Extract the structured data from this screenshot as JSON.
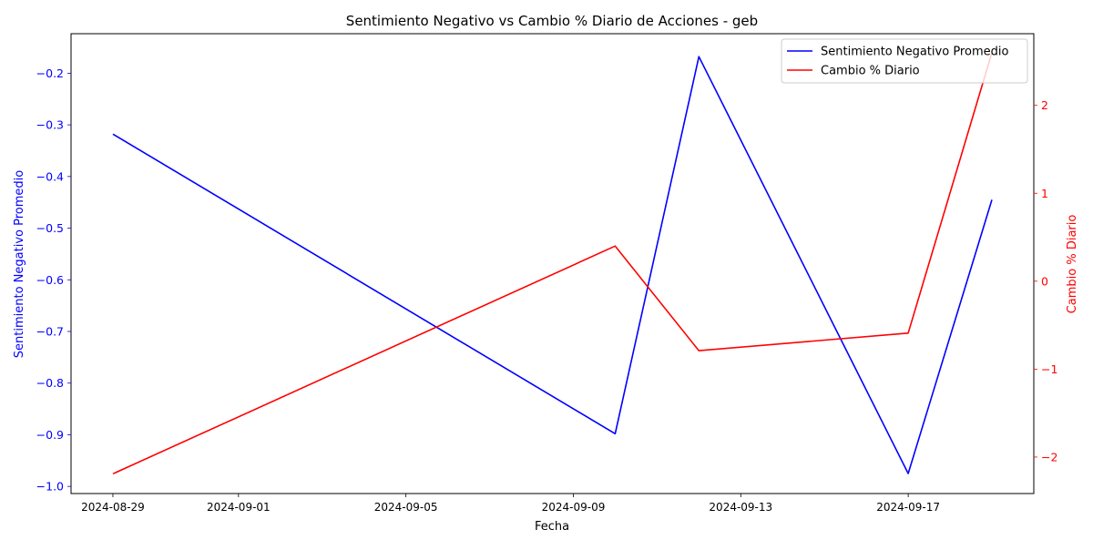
{
  "chart_data": {
    "type": "line",
    "title": "Sentimiento Negativo vs Cambio % Diario de Acciones - geb",
    "xlabel": "Fecha",
    "ylabel_left": "Sentimiento Negativo Promedio",
    "ylabel_right": "Cambio % Diario",
    "x_ticks": [
      "2024-08-29",
      "2024-09-01",
      "2024-09-05",
      "2024-09-09",
      "2024-09-13",
      "2024-09-17"
    ],
    "y_left_ticks": [
      "-1.0",
      "-0.9",
      "-0.8",
      "-0.7",
      "-0.6",
      "-0.5",
      "-0.4",
      "-0.3",
      "-0.2"
    ],
    "y_right_ticks": [
      "-2",
      "-1",
      "0",
      "1",
      "2"
    ],
    "y_left_lim": [
      -1.0138,
      -0.1235
    ],
    "y_right_lim": [
      -2.415,
      2.815
    ],
    "x_lim": [
      "2024-08-28T00:00",
      "2024-09-20T00:00"
    ],
    "legend_position": "upper right",
    "colors": {
      "left_axis": "#0000ff",
      "right_axis": "#ff0000",
      "axes": "#000000"
    },
    "series": [
      {
        "name": "Sentimiento Negativo Promedio",
        "axis": "left",
        "color": "#0000ff",
        "x": [
          "2024-08-29",
          "2024-09-10",
          "2024-09-12",
          "2024-09-17",
          "2024-09-19"
        ],
        "values": [
          -0.318,
          -0.898,
          -0.168,
          -0.975,
          -0.445
        ]
      },
      {
        "name": "Cambio % Diario",
        "axis": "right",
        "color": "#ff0000",
        "x": [
          "2024-08-29",
          "2024-09-10",
          "2024-09-12",
          "2024-09-17",
          "2024-09-19"
        ],
        "values": [
          -2.19,
          0.4,
          -0.79,
          -0.59,
          2.6
        ]
      }
    ]
  }
}
